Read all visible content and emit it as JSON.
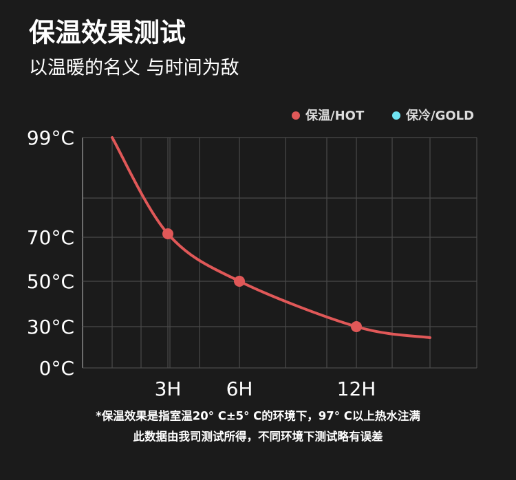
{
  "chart_data": {
    "type": "line",
    "title": "保温效果测试",
    "subtitle": "以温暖的名义 与时间为敌",
    "x": [
      0,
      3,
      6,
      12,
      18
    ],
    "xticks": [
      {
        "value": 3,
        "label": "3H"
      },
      {
        "value": 6,
        "label": "6H"
      },
      {
        "value": 12,
        "label": "12H"
      }
    ],
    "series": [
      {
        "name": "保温/HOT",
        "color": "#e05858",
        "values": [
          99,
          71,
          50,
          30,
          22
        ],
        "markers": [
          false,
          true,
          true,
          true,
          false
        ]
      },
      {
        "name": "保冷/GOLD",
        "color": "#6fe3f2",
        "values": [
          null,
          null,
          null,
          null,
          null
        ]
      }
    ],
    "ylim": [
      0,
      99
    ],
    "yticks": [
      {
        "value": 0,
        "label": "0°C"
      },
      {
        "value": 30,
        "label": "30°C"
      },
      {
        "value": 50,
        "label": "50°C"
      },
      {
        "value": 70,
        "label": "70°C"
      },
      {
        "value": 99,
        "label": "99°C"
      }
    ],
    "grid": true,
    "footnote": [
      "*保温效果是指室温20° C±5° C的环境下，97° C以上热水注满",
      "此数据由我司测试所得，不同环境下测试略有误差"
    ]
  }
}
